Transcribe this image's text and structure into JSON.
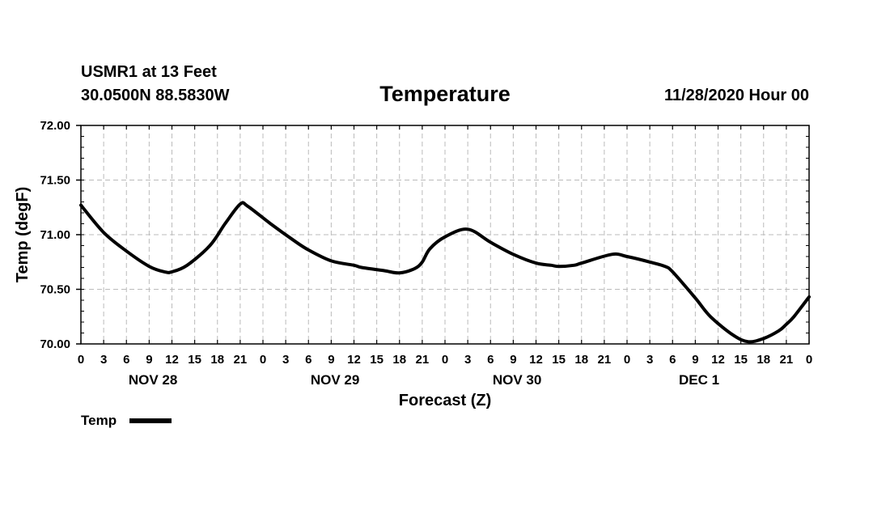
{
  "header": {
    "station": "USMR1 at 13 Feet",
    "coords": "30.0500N 88.5830W",
    "datetime": "11/28/2020 Hour 00"
  },
  "legend": {
    "label": "Temp"
  },
  "colors": {
    "line": "#000000",
    "grid": "#bbbbbb",
    "background": "#ffffff"
  },
  "chart_data": {
    "type": "line",
    "title": "Temperature",
    "xlabel": "Forecast (Z)",
    "ylabel": "Temp (degF)",
    "xlim": [
      0,
      96
    ],
    "ylim": [
      70.0,
      72.0
    ],
    "y_ticks": [
      "70.00",
      "70.50",
      "71.00",
      "71.50",
      "72.00"
    ],
    "x_tick_labels": [
      "0",
      "3",
      "6",
      "9",
      "12",
      "15",
      "18",
      "21",
      "0",
      "3",
      "6",
      "9",
      "12",
      "15",
      "18",
      "21",
      "0",
      "3",
      "6",
      "9",
      "12",
      "15",
      "18",
      "21",
      "0",
      "3",
      "6",
      "9",
      "12",
      "15",
      "18",
      "21",
      "0"
    ],
    "day_labels": [
      "NOV 28",
      "NOV 29",
      "NOV 30",
      "DEC 1"
    ],
    "grid": true,
    "series": [
      {
        "name": "Temp",
        "x": [
          0,
          3,
          6,
          9,
          11,
          12,
          14,
          17,
          19,
          21,
          22,
          25,
          28,
          30,
          33,
          36,
          37,
          40,
          42,
          44,
          45,
          46,
          48,
          51,
          54,
          57,
          60,
          62,
          63,
          65,
          66,
          70,
          72,
          75,
          77,
          78,
          81,
          83,
          86,
          88,
          90,
          92,
          93,
          94,
          96
        ],
        "y": [
          71.27,
          71.02,
          70.85,
          70.71,
          70.66,
          70.66,
          70.72,
          70.9,
          71.1,
          71.28,
          71.26,
          71.1,
          70.95,
          70.86,
          70.76,
          70.72,
          70.7,
          70.67,
          70.65,
          70.69,
          70.75,
          70.87,
          70.98,
          71.05,
          70.93,
          70.82,
          70.74,
          70.72,
          70.71,
          70.72,
          70.74,
          70.82,
          70.8,
          70.75,
          70.71,
          70.66,
          70.42,
          70.25,
          70.08,
          70.02,
          70.05,
          70.12,
          70.18,
          70.25,
          70.43
        ]
      }
    ]
  }
}
